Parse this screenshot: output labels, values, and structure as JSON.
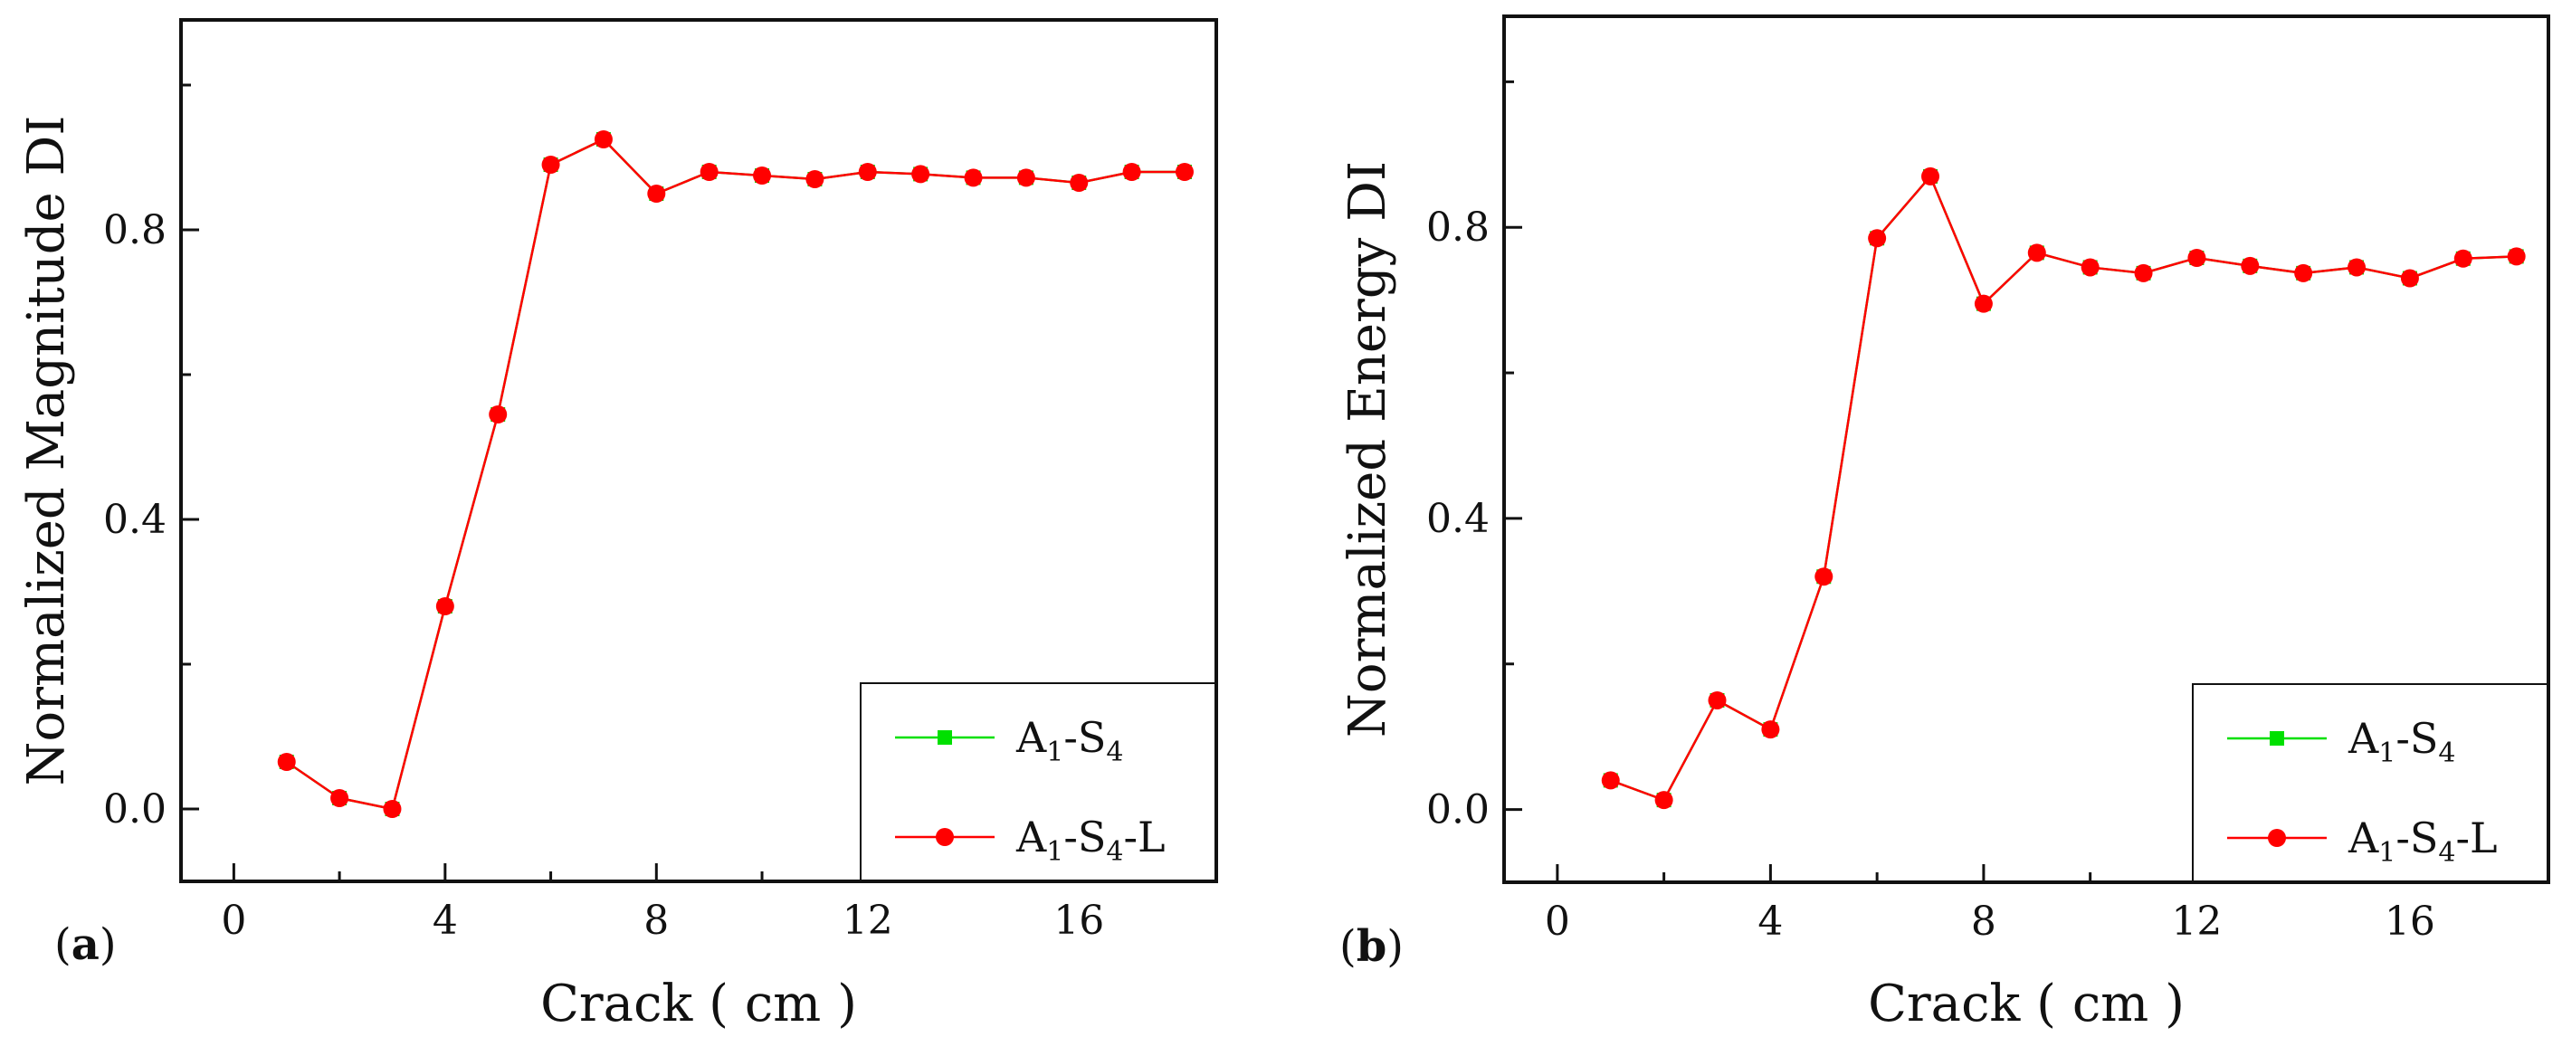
{
  "panels": [
    {
      "panel_label": "a",
      "chart_data": {
        "type": "line",
        "title": "",
        "xlabel": "Crack ( cm )",
        "ylabel": "Normalized Magnitude DI",
        "xlim": [
          -1,
          18.6
        ],
        "ylim": [
          -0.1,
          1.09
        ],
        "xticks": [
          0,
          4,
          8,
          12,
          16
        ],
        "yticks": [
          0.0,
          0.4,
          0.8
        ],
        "xtick_labels": [
          "0",
          "4",
          "8",
          "12",
          "16"
        ],
        "ytick_labels": [
          "0.0",
          "0.4",
          "0.8"
        ],
        "legend_position": "bottom-right",
        "x": [
          1,
          2,
          3,
          4,
          5,
          6,
          7,
          8,
          9,
          10,
          11,
          12,
          13,
          14,
          15,
          16,
          17,
          18
        ],
        "series": [
          {
            "name": "A1-S4",
            "label_base": "A",
            "label_sub1": "1",
            "label_mid": "-S",
            "label_sub2": "4",
            "label_suffix": "",
            "color": "#00e000",
            "marker": "square",
            "values": [
              0.065,
              0.015,
              0.0,
              0.28,
              0.545,
              0.89,
              0.925,
              0.85,
              0.88,
              0.875,
              0.87,
              0.88,
              0.877,
              0.872,
              0.872,
              0.865,
              0.88,
              0.88
            ]
          },
          {
            "name": "A1-S4-L",
            "label_base": "A",
            "label_sub1": "1",
            "label_mid": "-S",
            "label_sub2": "4",
            "label_suffix": "-L",
            "color": "#ff0000",
            "marker": "circle",
            "values": [
              0.065,
              0.015,
              0.0,
              0.28,
              0.545,
              0.89,
              0.925,
              0.85,
              0.88,
              0.875,
              0.87,
              0.88,
              0.877,
              0.872,
              0.872,
              0.865,
              0.88,
              0.88
            ]
          }
        ]
      }
    },
    {
      "panel_label": "b",
      "chart_data": {
        "type": "line",
        "title": "",
        "xlabel": "Crack ( cm )",
        "ylabel": "Normalized Energy DI",
        "xlim": [
          -1,
          18.6
        ],
        "ylim": [
          -0.1,
          1.09
        ],
        "xticks": [
          0,
          4,
          8,
          12,
          16
        ],
        "yticks": [
          0.0,
          0.4,
          0.8
        ],
        "xtick_labels": [
          "0",
          "4",
          "8",
          "12",
          "16"
        ],
        "ytick_labels": [
          "0.0",
          "0.4",
          "0.8"
        ],
        "legend_position": "bottom-right",
        "x": [
          1,
          2,
          3,
          4,
          5,
          6,
          7,
          8,
          9,
          10,
          11,
          12,
          13,
          14,
          15,
          16,
          17,
          18
        ],
        "series": [
          {
            "name": "A1-S4",
            "label_base": "A",
            "label_sub1": "1",
            "label_mid": "-S",
            "label_sub2": "4",
            "label_suffix": "",
            "color": "#00e000",
            "marker": "square",
            "values": [
              0.04,
              0.013,
              0.15,
              0.11,
              0.32,
              0.785,
              0.87,
              0.695,
              0.765,
              0.745,
              0.737,
              0.758,
              0.747,
              0.737,
              0.745,
              0.73,
              0.757,
              0.76
            ]
          },
          {
            "name": "A1-S4-L",
            "label_base": "A",
            "label_sub1": "1",
            "label_mid": "-S",
            "label_sub2": "4",
            "label_suffix": "-L",
            "color": "#ff0000",
            "marker": "circle",
            "values": [
              0.04,
              0.013,
              0.15,
              0.11,
              0.32,
              0.785,
              0.87,
              0.695,
              0.765,
              0.745,
              0.737,
              0.758,
              0.747,
              0.737,
              0.745,
              0.73,
              0.757,
              0.76
            ]
          }
        ]
      }
    }
  ]
}
